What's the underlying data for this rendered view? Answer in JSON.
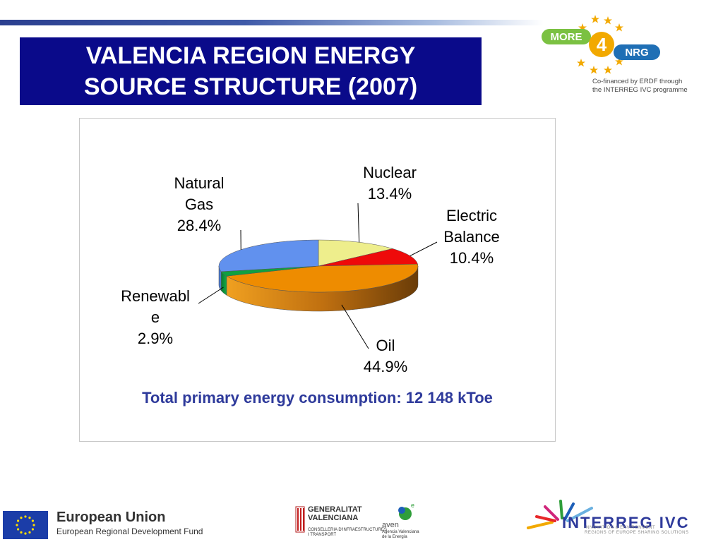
{
  "header": {
    "title_line1": "VALENCIA REGION ENERGY",
    "title_line2": "SOURCE STRUCTURE (2007)"
  },
  "logos": {
    "more": {
      "word_more": "MORE",
      "digit": "4",
      "word_nrg": "NRG"
    },
    "cofinanced_line1": "Co-financed by ERDF through",
    "cofinanced_line2": "the INTERREG IVC programme",
    "eu_title": "European Union",
    "eu_subtitle": "European Regional Development Fund",
    "gv_line1": "GENERALITAT",
    "gv_line2": "VALENCIANA",
    "gv_sub1": "CONSELLERIA D'INFRAESTRUCTURES",
    "gv_sub2": "I TRANSPORT",
    "aven_name": "aven",
    "aven_sup": "e",
    "aven_sub1": "Agencia Valenciana",
    "aven_sub2": "de la Energía",
    "interreg_title": "INTERREG IVC",
    "interreg_sub1": "INNOVATION & ENVIRONMENT",
    "interreg_sub2": "REGIONS OF EUROPE SHARING SOLUTIONS"
  },
  "chart_data": {
    "type": "pie",
    "title": "",
    "categories": [
      "Nuclear",
      "Electric Balance",
      "Oil",
      "Renewable",
      "Natural Gas"
    ],
    "values": [
      13.4,
      10.4,
      44.9,
      2.9,
      28.4
    ],
    "value_labels": [
      "13.4%",
      "10.4%",
      "44.9%",
      "2.9%",
      "28.4%"
    ],
    "label_texts": {
      "nuclear": "Nuclear",
      "electric_1": "Electric",
      "electric_2": "Balance",
      "oil": "Oil",
      "renewable_1": "Renewabl",
      "renewable_2": "e",
      "gas_1": "Natural",
      "gas_2": "Gas"
    },
    "colors": [
      "#eeee8c",
      "#ee0a0a",
      "#ee8c00",
      "#0fa040",
      "#6191ee"
    ],
    "style": "3d",
    "footnote": "Total primary energy consumption: 12 148 kToe"
  }
}
